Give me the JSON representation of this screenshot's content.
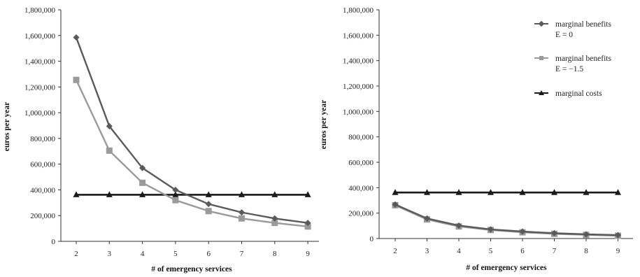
{
  "charts": [
    {
      "type": "line",
      "xlabel": "# of emergency services",
      "ylabel": "euros per year",
      "x": [
        2,
        3,
        4,
        5,
        6,
        7,
        8,
        9
      ],
      "ylim": [
        0,
        1800000
      ],
      "yticks": [
        0,
        200000,
        400000,
        600000,
        800000,
        1000000,
        1200000,
        1400000,
        1600000,
        1800000
      ],
      "ytick_labels": [
        "0",
        "200,000",
        "400,000",
        "600,000",
        "800,000",
        "1,000,000",
        "1,200,000",
        "1,400,000",
        "1,600,000",
        "1,800,000"
      ],
      "series": [
        {
          "values": [
            1585000,
            895000,
            570000,
            400000,
            290000,
            225000,
            178000,
            143000
          ],
          "color": "#5a5a5a",
          "marker": "diamond"
        },
        {
          "values": [
            1255000,
            705000,
            455000,
            320000,
            235000,
            178000,
            143000,
            115000
          ],
          "color": "#9a9a9a",
          "marker": "square"
        },
        {
          "values": [
            362000,
            362000,
            362000,
            362000,
            362000,
            362000,
            362000,
            362000
          ],
          "color": "#1a1a1a",
          "marker": "triangle"
        }
      ]
    },
    {
      "type": "line",
      "xlabel": "# of emergency services",
      "ylabel": "euros per year",
      "x": [
        2,
        3,
        4,
        5,
        6,
        7,
        8,
        9
      ],
      "ylim": [
        0,
        1800000
      ],
      "yticks": [
        0,
        200000,
        400000,
        600000,
        800000,
        1000000,
        1200000,
        1400000,
        1600000,
        1800000
      ],
      "ytick_labels": [
        "0",
        "200,000",
        "400,000",
        "600,000",
        "800,000",
        "1,000,000",
        "1,200,000",
        "1,400,000",
        "1,600,000",
        "1,800,000"
      ],
      "legend_position": "top-right",
      "series": [
        {
          "name": "marginal benefits\nE = 0",
          "values": [
            268000,
            158000,
            102000,
            72000,
            55000,
            42000,
            33000,
            27000
          ],
          "color": "#5a5a5a",
          "marker": "diamond"
        },
        {
          "name": "marginal benefits\nE = −1.5",
          "values": [
            262000,
            150000,
            95000,
            67000,
            49000,
            37000,
            29000,
            22000
          ],
          "color": "#9a9a9a",
          "marker": "square"
        },
        {
          "name": "marginal costs",
          "values": [
            362000,
            362000,
            362000,
            362000,
            362000,
            362000,
            362000,
            362000
          ],
          "color": "#1a1a1a",
          "marker": "triangle"
        }
      ]
    }
  ]
}
